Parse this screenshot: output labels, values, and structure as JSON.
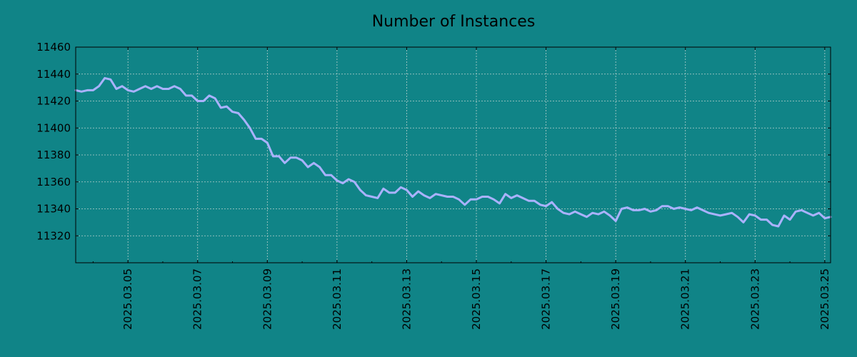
{
  "colors": {
    "background": "#108487",
    "series": "#aab2ff",
    "grid": "#b6cfcc",
    "axis": "#000000"
  },
  "chart_data": {
    "type": "line",
    "title": "Number of Instances",
    "xlabel": "",
    "ylabel": "",
    "grid": true,
    "legend": "none",
    "xlim": [
      "2025-03-03T12:00",
      "2025-03-25T04:00"
    ],
    "ylim": [
      11300,
      11460
    ],
    "x_ticks": [
      "2025.03.05",
      "2025.03.07",
      "2025.03.09",
      "2025.03.11",
      "2025.03.13",
      "2025.03.15",
      "2025.03.17",
      "2025.03.19",
      "2025.03.21",
      "2025.03.23",
      "2025.03.25"
    ],
    "y_ticks": [
      11320,
      11340,
      11360,
      11380,
      11400,
      11420,
      11440,
      11460
    ],
    "series": [
      {
        "name": "",
        "x": [
          "2025-03-03T12:00",
          "2025-03-03T16:00",
          "2025-03-03T20:00",
          "2025-03-04T00:00",
          "2025-03-04T04:00",
          "2025-03-04T08:00",
          "2025-03-04T12:00",
          "2025-03-04T16:00",
          "2025-03-04T20:00",
          "2025-03-05T00:00",
          "2025-03-05T04:00",
          "2025-03-05T08:00",
          "2025-03-05T12:00",
          "2025-03-05T16:00",
          "2025-03-05T20:00",
          "2025-03-06T00:00",
          "2025-03-06T04:00",
          "2025-03-06T08:00",
          "2025-03-06T12:00",
          "2025-03-06T16:00",
          "2025-03-06T20:00",
          "2025-03-07T00:00",
          "2025-03-07T04:00",
          "2025-03-07T08:00",
          "2025-03-07T12:00",
          "2025-03-07T16:00",
          "2025-03-07T20:00",
          "2025-03-08T00:00",
          "2025-03-08T04:00",
          "2025-03-08T08:00",
          "2025-03-08T12:00",
          "2025-03-08T16:00",
          "2025-03-08T20:00",
          "2025-03-09T00:00",
          "2025-03-09T04:00",
          "2025-03-09T08:00",
          "2025-03-09T12:00",
          "2025-03-09T16:00",
          "2025-03-09T20:00",
          "2025-03-10T00:00",
          "2025-03-10T04:00",
          "2025-03-10T08:00",
          "2025-03-10T12:00",
          "2025-03-10T16:00",
          "2025-03-10T20:00",
          "2025-03-11T00:00",
          "2025-03-11T04:00",
          "2025-03-11T08:00",
          "2025-03-11T12:00",
          "2025-03-11T16:00",
          "2025-03-11T20:00",
          "2025-03-12T00:00",
          "2025-03-12T04:00",
          "2025-03-12T08:00",
          "2025-03-12T12:00",
          "2025-03-12T16:00",
          "2025-03-12T20:00",
          "2025-03-13T00:00",
          "2025-03-13T04:00",
          "2025-03-13T08:00",
          "2025-03-13T12:00",
          "2025-03-13T16:00",
          "2025-03-13T20:00",
          "2025-03-14T00:00",
          "2025-03-14T04:00",
          "2025-03-14T08:00",
          "2025-03-14T12:00",
          "2025-03-14T16:00",
          "2025-03-14T20:00",
          "2025-03-15T00:00",
          "2025-03-15T04:00",
          "2025-03-15T08:00",
          "2025-03-15T12:00",
          "2025-03-15T16:00",
          "2025-03-15T20:00",
          "2025-03-16T00:00",
          "2025-03-16T04:00",
          "2025-03-16T08:00",
          "2025-03-16T12:00",
          "2025-03-16T16:00",
          "2025-03-16T20:00",
          "2025-03-17T00:00",
          "2025-03-17T04:00",
          "2025-03-17T08:00",
          "2025-03-17T12:00",
          "2025-03-17T16:00",
          "2025-03-17T20:00",
          "2025-03-18T00:00",
          "2025-03-18T04:00",
          "2025-03-18T08:00",
          "2025-03-18T12:00",
          "2025-03-18T16:00",
          "2025-03-18T20:00",
          "2025-03-19T00:00",
          "2025-03-19T04:00",
          "2025-03-19T08:00",
          "2025-03-19T12:00",
          "2025-03-19T16:00",
          "2025-03-19T20:00",
          "2025-03-20T00:00",
          "2025-03-20T04:00",
          "2025-03-20T08:00",
          "2025-03-20T12:00",
          "2025-03-20T16:00",
          "2025-03-20T20:00",
          "2025-03-21T00:00",
          "2025-03-21T04:00",
          "2025-03-21T08:00",
          "2025-03-21T12:00",
          "2025-03-21T16:00",
          "2025-03-21T20:00",
          "2025-03-22T00:00",
          "2025-03-22T04:00",
          "2025-03-22T08:00",
          "2025-03-22T12:00",
          "2025-03-22T16:00",
          "2025-03-22T20:00",
          "2025-03-23T00:00",
          "2025-03-23T04:00",
          "2025-03-23T08:00",
          "2025-03-23T12:00",
          "2025-03-23T16:00",
          "2025-03-23T20:00",
          "2025-03-24T00:00",
          "2025-03-24T04:00",
          "2025-03-24T08:00",
          "2025-03-24T12:00",
          "2025-03-24T16:00",
          "2025-03-24T20:00",
          "2025-03-25T00:00",
          "2025-03-25T04:00"
        ],
        "values": [
          11428,
          11427,
          11428,
          11428,
          11431,
          11437,
          11436,
          11429,
          11431,
          11428,
          11427,
          11429,
          11431,
          11429,
          11431,
          11429,
          11429,
          11431,
          11429,
          11424,
          11424,
          11420,
          11420,
          11424,
          11422,
          11415,
          11416,
          11412,
          11411,
          11406,
          11400,
          11392,
          11392,
          11389,
          11379,
          11379,
          11374,
          11378,
          11378,
          11376,
          11371,
          11374,
          11371,
          11365,
          11365,
          11361,
          11359,
          11362,
          11360,
          11354,
          11350,
          11349,
          11348,
          11355,
          11352,
          11352,
          11356,
          11354,
          11349,
          11353,
          11350,
          11348,
          11351,
          11350,
          11349,
          11349,
          11347,
          11343,
          11347,
          11347,
          11349,
          11349,
          11347,
          11344,
          11351,
          11348,
          11350,
          11348,
          11346,
          11346,
          11343,
          11342,
          11345,
          11340,
          11337,
          11336,
          11338,
          11336,
          11334,
          11337,
          11336,
          11338,
          11335,
          11331,
          11340,
          11341,
          11339,
          11339,
          11340,
          11338,
          11339,
          11342,
          11342,
          11340,
          11341,
          11340,
          11339,
          11341,
          11339,
          11337,
          11336,
          11335,
          11336,
          11337,
          11334,
          11330,
          11336,
          11335,
          11332,
          11332,
          11328,
          11327,
          11335,
          11332,
          11338,
          11339,
          11337,
          11335,
          11337,
          11333,
          11334
        ]
      }
    ]
  }
}
